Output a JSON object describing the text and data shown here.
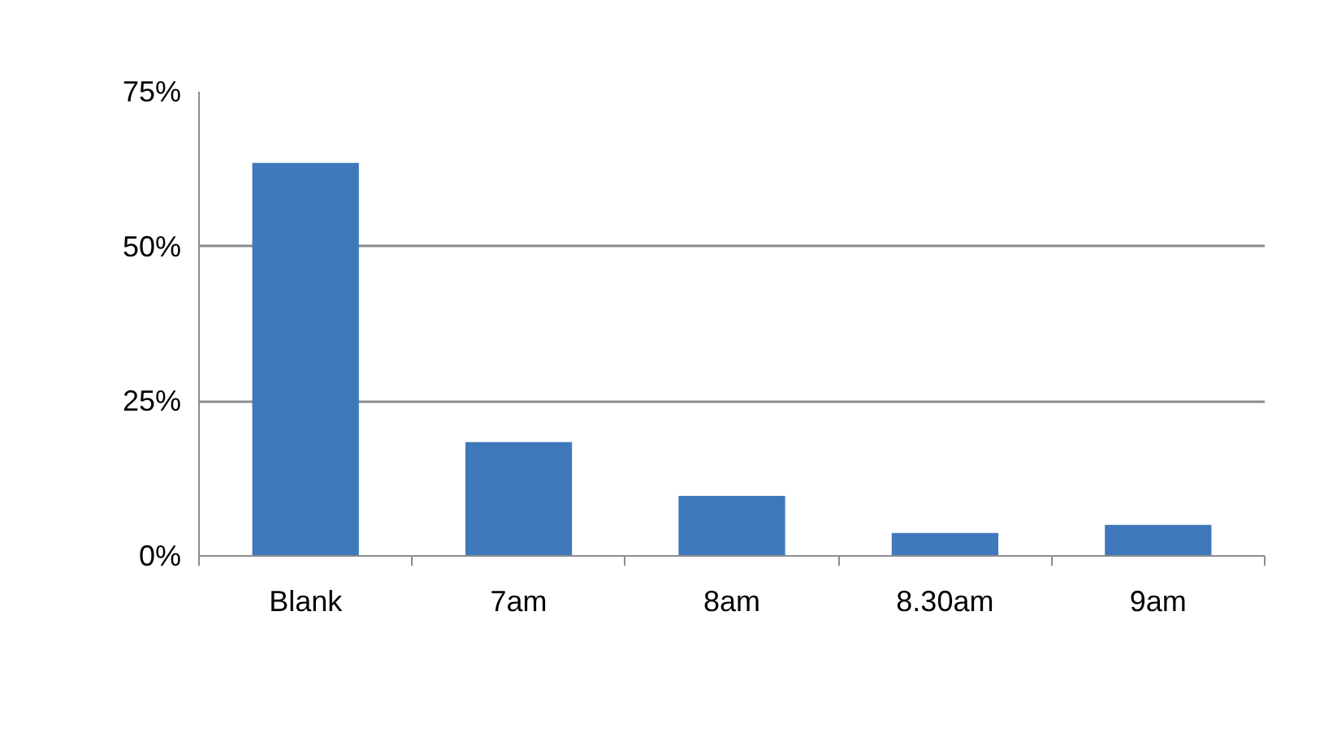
{
  "chart_data": {
    "type": "bar",
    "categories": [
      "Blank",
      "7am",
      "8am",
      "8.30am",
      "9am"
    ],
    "values": [
      63.5,
      18.4,
      9.7,
      3.7,
      5.0
    ],
    "color": "#3f78bb",
    "ylim": [
      0,
      75
    ],
    "yticks": [
      {
        "value": 0,
        "label": "0%"
      },
      {
        "value": 25,
        "label": "25%"
      },
      {
        "value": 50,
        "label": "50%"
      },
      {
        "value": 75,
        "label": "75%"
      }
    ],
    "grid": "y"
  }
}
